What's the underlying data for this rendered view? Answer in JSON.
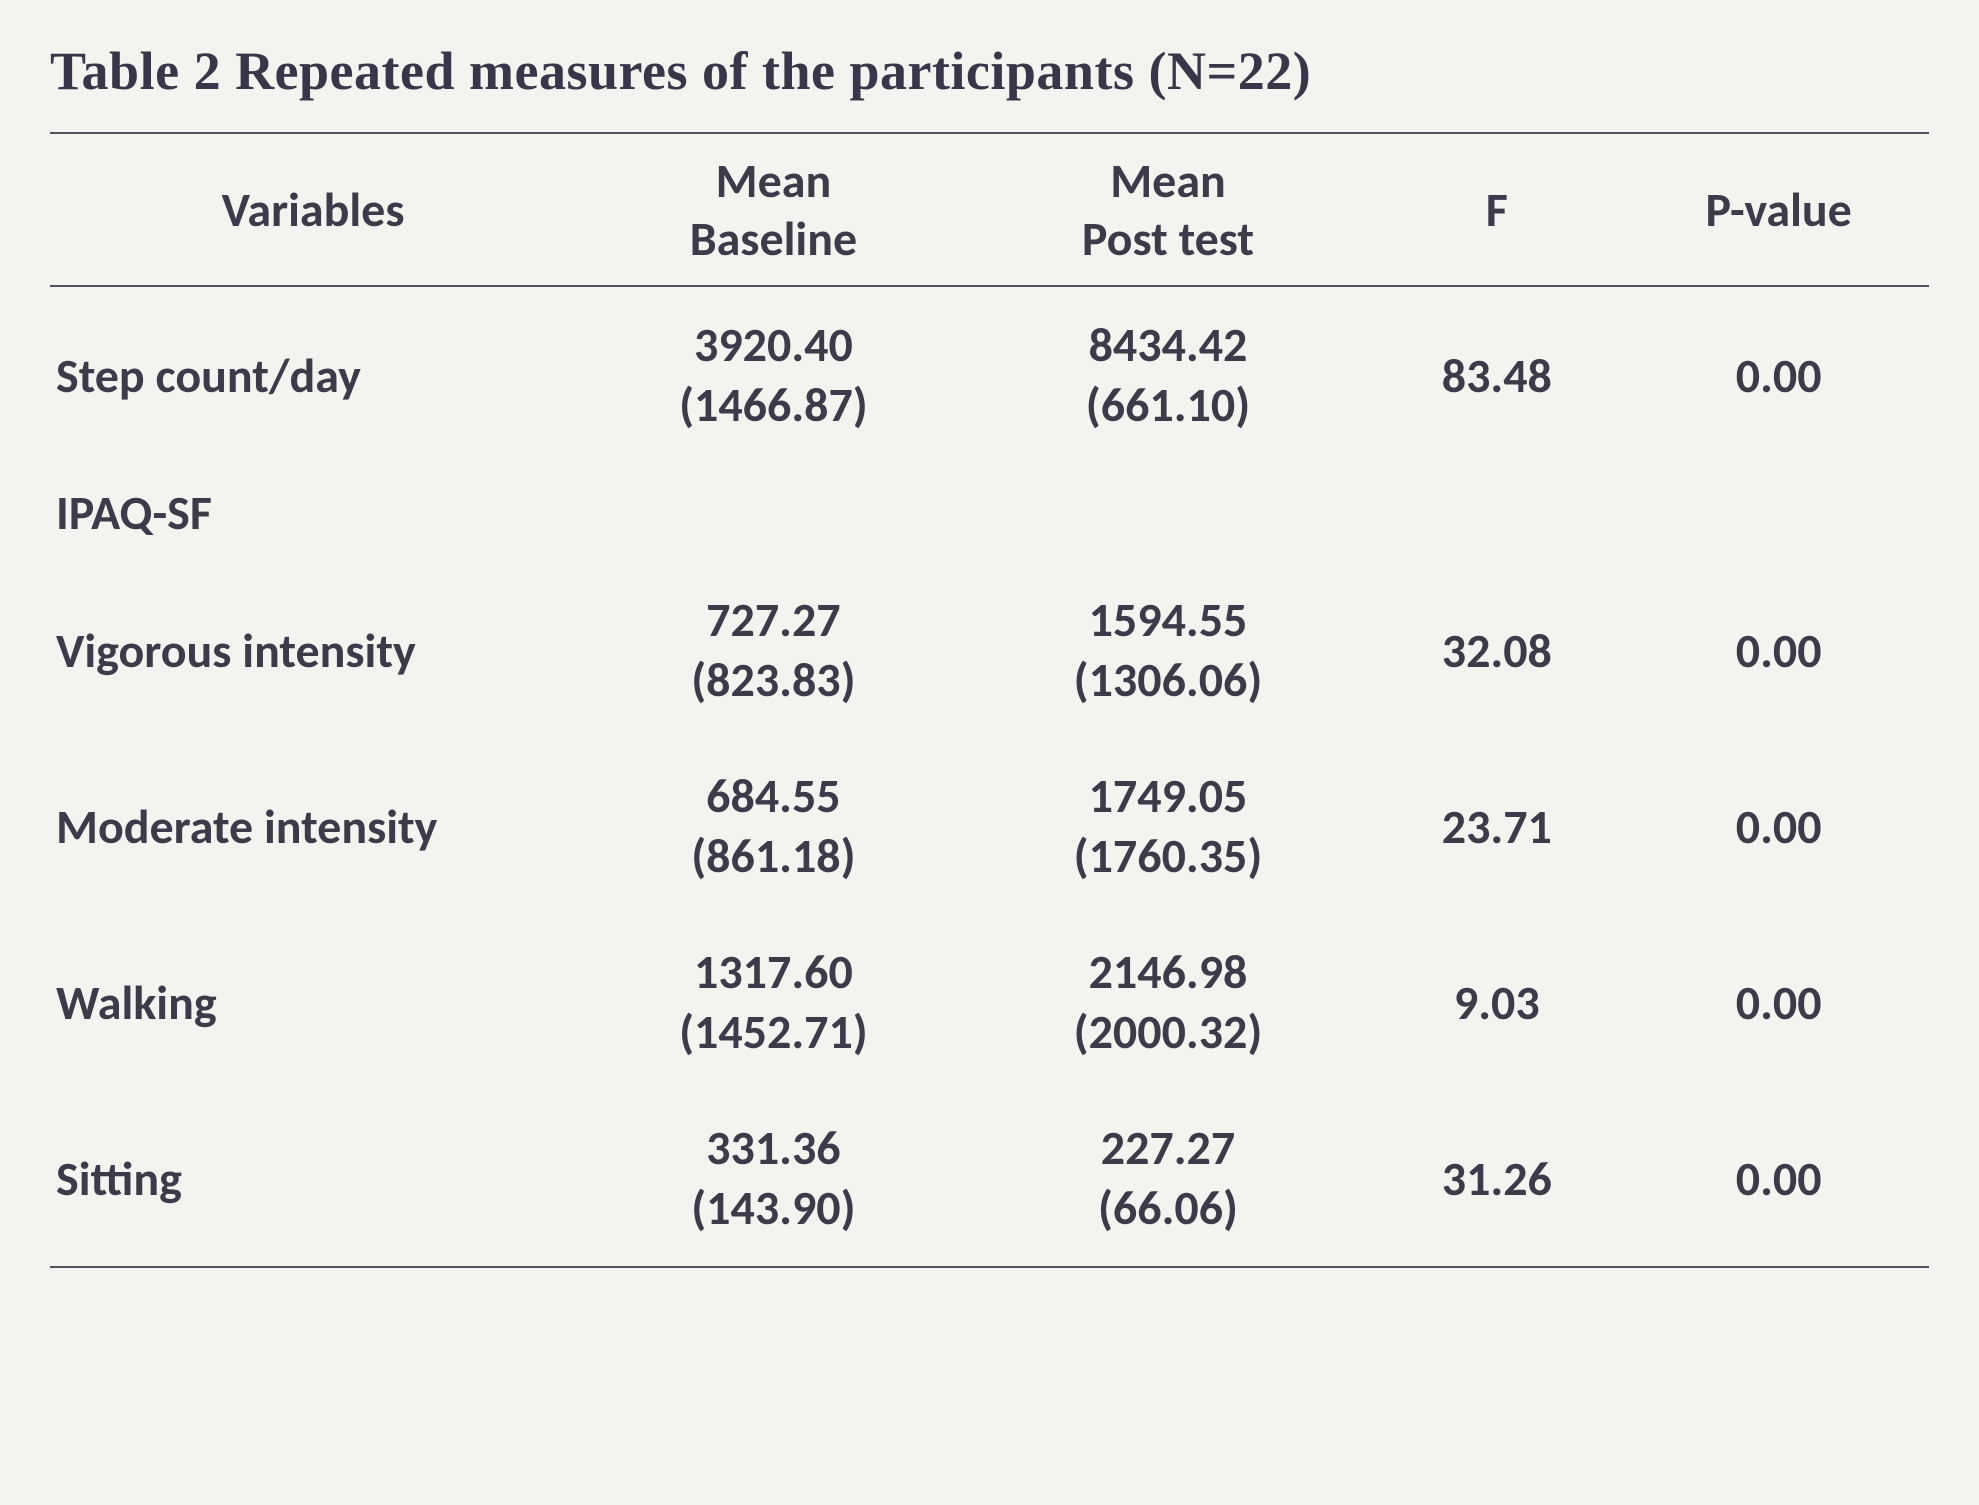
{
  "title": "Table  2 Repeated measures of the participants (N=22)",
  "table": {
    "type": "table",
    "background_color": "#f4f3ef",
    "rule_color": "#555062",
    "text_color": "#3e3a4a",
    "title_fontsize": 54,
    "header_fontsize": 48,
    "body_fontsize": 48,
    "columns": [
      {
        "key": "variable",
        "label_line1": "Variables",
        "label_line2": "",
        "align": "center",
        "width_pct": 28
      },
      {
        "key": "baseline",
        "label_line1": "Mean",
        "label_line2": "Baseline",
        "align": "center",
        "width_pct": 21
      },
      {
        "key": "posttest",
        "label_line1": "Mean",
        "label_line2": "Post test",
        "align": "center",
        "width_pct": 21
      },
      {
        "key": "f",
        "label_line1": "F",
        "label_line2": "",
        "align": "center",
        "width_pct": 14
      },
      {
        "key": "p",
        "label_line1": "P-value",
        "label_line2": "",
        "align": "center",
        "width_pct": 16
      }
    ],
    "rows": [
      {
        "variable": "Step count/day",
        "baseline_mean": "3920.40",
        "baseline_sd": "(1466.87)",
        "post_mean": "8434.42",
        "post_sd": "(661.10)",
        "f": "83.48",
        "p": "0.00",
        "is_section": false
      },
      {
        "variable": "IPAQ-SF",
        "baseline_mean": "",
        "baseline_sd": "",
        "post_mean": "",
        "post_sd": "",
        "f": "",
        "p": "",
        "is_section": true
      },
      {
        "variable": "Vigorous intensity",
        "baseline_mean": "727.27",
        "baseline_sd": "(823.83)",
        "post_mean": "1594.55",
        "post_sd": "(1306.06)",
        "f": "32.08",
        "p": "0.00",
        "is_section": false
      },
      {
        "variable": "Moderate intensity",
        "baseline_mean": "684.55",
        "baseline_sd": "(861.18)",
        "post_mean": "1749.05",
        "post_sd": "(1760.35)",
        "f": "23.71",
        "p": "0.00",
        "is_section": false
      },
      {
        "variable": "Walking",
        "baseline_mean": "1317.60",
        "baseline_sd": "(1452.71)",
        "post_mean": "2146.98",
        "post_sd": "(2000.32)",
        "f": "9.03",
        "p": "0.00",
        "is_section": false
      },
      {
        "variable": "Sitting",
        "baseline_mean": "331.36",
        "baseline_sd": "(143.90)",
        "post_mean": "227.27",
        "post_sd": "(66.06)",
        "f": "31.26",
        "p": "0.00",
        "is_section": false
      }
    ]
  }
}
